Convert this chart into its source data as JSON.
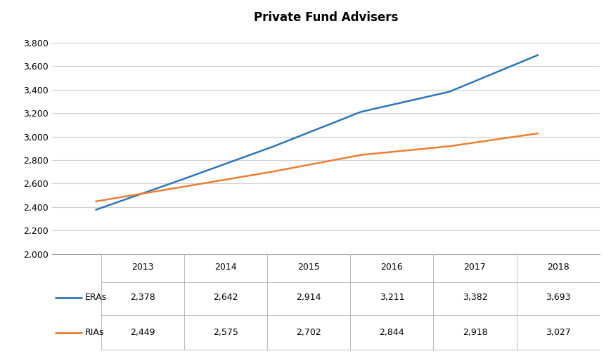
{
  "title": "Private Fund Advisers",
  "years": [
    2013,
    2014,
    2015,
    2016,
    2017,
    2018
  ],
  "ERAs": [
    2378,
    2642,
    2914,
    3211,
    3382,
    3693
  ],
  "RIAs": [
    2449,
    2575,
    2702,
    2844,
    2918,
    3027
  ],
  "ERA_color": "#2E75B6",
  "RIA_color": "#ED7D31",
  "ylim": [
    2000,
    3900
  ],
  "yticks": [
    2000,
    2200,
    2400,
    2600,
    2800,
    3000,
    3200,
    3400,
    3600,
    3800
  ],
  "background_color": "#FFFFFF",
  "grid_color": "#D0D0D0",
  "title_fontsize": 12,
  "table_row_labels": [
    "ERAs",
    "RIAs"
  ]
}
